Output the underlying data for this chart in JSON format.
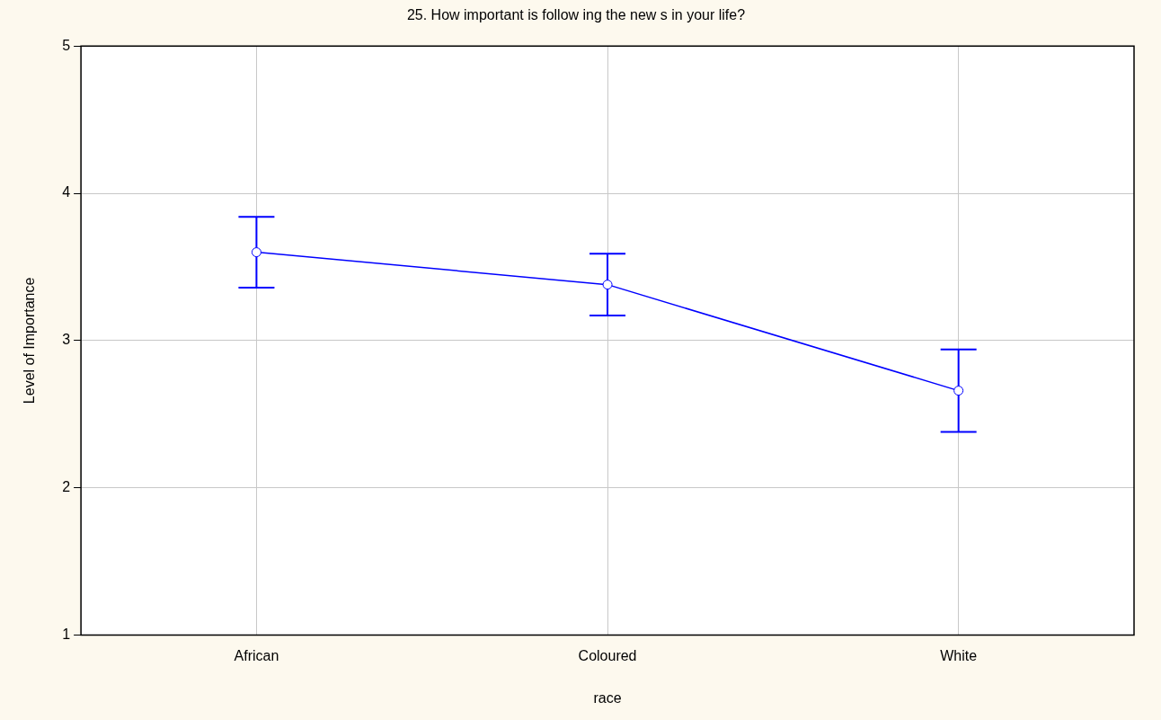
{
  "chart_data": {
    "type": "line",
    "title": "25. How important is follow ing the new s in your life?",
    "xlabel": "race",
    "ylabel": "Level of Importance",
    "categories": [
      "African",
      "Coloured",
      "White"
    ],
    "series": [
      {
        "color": "#0000ff",
        "values": [
          3.6,
          3.38,
          2.66
        ],
        "errors": [
          0.24,
          0.21,
          0.28
        ]
      }
    ],
    "ylim": [
      1,
      5
    ],
    "yticks": [
      1,
      2,
      3,
      4,
      5
    ],
    "grid": true,
    "legend": false,
    "marker": "circle",
    "line_style": "solid"
  }
}
